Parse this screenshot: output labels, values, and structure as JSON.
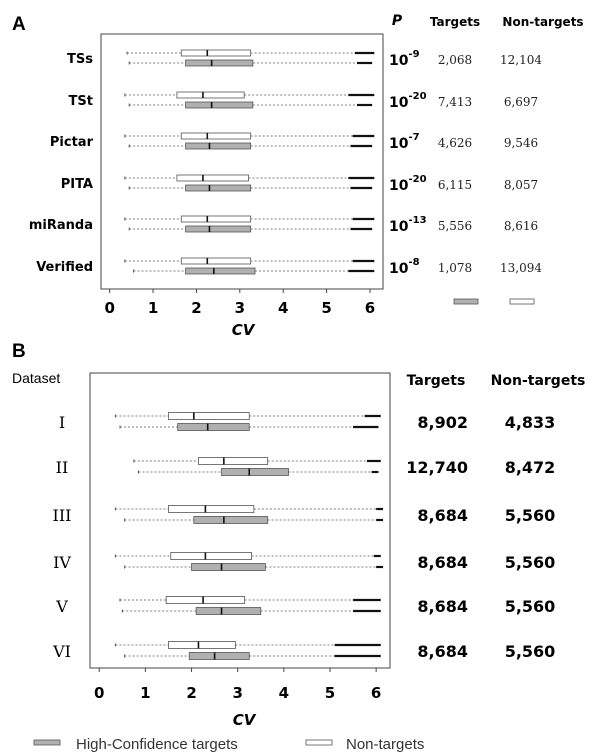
{
  "chart_data": [
    {
      "type": "boxplot",
      "panel": "A",
      "xlabel": "CV",
      "xlim": [
        -0.2,
        6.3
      ],
      "xticks": [
        0,
        1,
        2,
        3,
        4,
        5,
        6
      ],
      "p_header": "P",
      "targets_header": "Targets",
      "nontargets_header": "Non-targets",
      "rows": [
        {
          "label": "TSs",
          "p_exp": "-9",
          "targets": "2,068",
          "nontargets": "12,104",
          "nontarget_box": {
            "min": 0.4,
            "q1": 1.65,
            "median": 2.25,
            "q3": 3.25,
            "whisker": 5.65,
            "max": 6.1
          },
          "target_box": {
            "min": 0.45,
            "q1": 1.75,
            "median": 2.35,
            "q3": 3.3,
            "whisker": 5.7,
            "max": 6.05
          }
        },
        {
          "label": "TSt",
          "p_exp": "-20",
          "targets": "7,413",
          "nontargets": "6,697",
          "nontarget_box": {
            "min": 0.35,
            "q1": 1.55,
            "median": 2.15,
            "q3": 3.1,
            "whisker": 5.5,
            "max": 6.1
          },
          "target_box": {
            "min": 0.45,
            "q1": 1.75,
            "median": 2.35,
            "q3": 3.3,
            "whisker": 5.7,
            "max": 6.05
          }
        },
        {
          "label": "Pictar",
          "p_exp": "-7",
          "targets": "4,626",
          "nontargets": "9,546",
          "nontarget_box": {
            "min": 0.35,
            "q1": 1.65,
            "median": 2.25,
            "q3": 3.25,
            "whisker": 5.6,
            "max": 6.1
          },
          "target_box": {
            "min": 0.45,
            "q1": 1.75,
            "median": 2.3,
            "q3": 3.25,
            "whisker": 5.55,
            "max": 6.05
          }
        },
        {
          "label": "PITA",
          "p_exp": "-20",
          "targets": "6,115",
          "nontargets": "8,057",
          "nontarget_box": {
            "min": 0.35,
            "q1": 1.55,
            "median": 2.15,
            "q3": 3.2,
            "whisker": 5.5,
            "max": 6.1
          },
          "target_box": {
            "min": 0.45,
            "q1": 1.75,
            "median": 2.3,
            "q3": 3.25,
            "whisker": 5.55,
            "max": 6.05
          }
        },
        {
          "label": "miRanda",
          "p_exp": "-13",
          "targets": "5,556",
          "nontargets": "8,616",
          "nontarget_box": {
            "min": 0.35,
            "q1": 1.65,
            "median": 2.25,
            "q3": 3.25,
            "whisker": 5.6,
            "max": 6.1
          },
          "target_box": {
            "min": 0.45,
            "q1": 1.75,
            "median": 2.3,
            "q3": 3.25,
            "whisker": 5.55,
            "max": 6.05
          }
        },
        {
          "label": "Verified",
          "p_exp": "-8",
          "targets": "1,078",
          "nontargets": "13,094",
          "nontarget_box": {
            "min": 0.35,
            "q1": 1.65,
            "median": 2.25,
            "q3": 3.25,
            "whisker": 5.6,
            "max": 6.1
          },
          "target_box": {
            "min": 0.55,
            "q1": 1.75,
            "median": 2.4,
            "q3": 3.35,
            "whisker": 5.5,
            "max": 6.1
          }
        }
      ]
    },
    {
      "type": "boxplot",
      "panel": "B",
      "row_header": "Dataset",
      "xlabel": "CV",
      "xlim": [
        -0.2,
        6.3
      ],
      "xticks": [
        0,
        1,
        2,
        3,
        4,
        5,
        6
      ],
      "targets_header": "Targets",
      "nontargets_header": "Non-targets",
      "rows": [
        {
          "label": "I",
          "targets": "8,902",
          "nontargets": "4,833",
          "nontarget_box": {
            "min": 0.35,
            "q1": 1.5,
            "median": 2.05,
            "q3": 3.25,
            "whisker": 5.75,
            "max": 6.1
          },
          "target_box": {
            "min": 0.45,
            "q1": 1.7,
            "median": 2.35,
            "q3": 3.25,
            "whisker": 5.5,
            "max": 6.05
          }
        },
        {
          "label": "II",
          "targets": "12,740",
          "nontargets": "8,472",
          "nontarget_box": {
            "min": 0.75,
            "q1": 2.15,
            "median": 2.7,
            "q3": 3.65,
            "whisker": 5.8,
            "max": 6.1
          },
          "target_box": {
            "min": 0.85,
            "q1": 2.65,
            "median": 3.25,
            "q3": 4.1,
            "whisker": 5.9,
            "max": 6.05
          }
        },
        {
          "label": "III",
          "targets": "8,684",
          "nontargets": "5,560",
          "nontarget_box": {
            "min": 0.35,
            "q1": 1.5,
            "median": 2.3,
            "q3": 3.35,
            "whisker": 6.0,
            "max": 6.15
          },
          "target_box": {
            "min": 0.55,
            "q1": 2.05,
            "median": 2.7,
            "q3": 3.65,
            "whisker": 6.0,
            "max": 6.15
          }
        },
        {
          "label": "IV",
          "targets": "8,684",
          "nontargets": "5,560",
          "nontarget_box": {
            "min": 0.35,
            "q1": 1.55,
            "median": 2.3,
            "q3": 3.3,
            "whisker": 5.95,
            "max": 6.1
          },
          "target_box": {
            "min": 0.55,
            "q1": 2.0,
            "median": 2.65,
            "q3": 3.6,
            "whisker": 6.0,
            "max": 6.15
          }
        },
        {
          "label": "V",
          "targets": "8,684",
          "nontargets": "5,560",
          "nontarget_box": {
            "min": 0.45,
            "q1": 1.45,
            "median": 2.25,
            "q3": 3.15,
            "whisker": 5.5,
            "max": 6.1
          },
          "target_box": {
            "min": 0.5,
            "q1": 2.1,
            "median": 2.65,
            "q3": 3.5,
            "whisker": 5.5,
            "max": 6.1
          }
        },
        {
          "label": "VI",
          "targets": "8,684",
          "nontargets": "5,560",
          "nontarget_box": {
            "min": 0.35,
            "q1": 1.5,
            "median": 2.15,
            "q3": 2.95,
            "whisker": 5.1,
            "max": 6.1
          },
          "target_box": {
            "min": 0.55,
            "q1": 1.95,
            "median": 2.5,
            "q3": 3.25,
            "whisker": 5.1,
            "max": 6.1
          }
        }
      ]
    }
  ],
  "legend": {
    "target_label": "High-Confidence targets",
    "nontarget_label": "Non-targets",
    "target_color": "#b0b0b0",
    "nontarget_color": "#ffffff"
  }
}
